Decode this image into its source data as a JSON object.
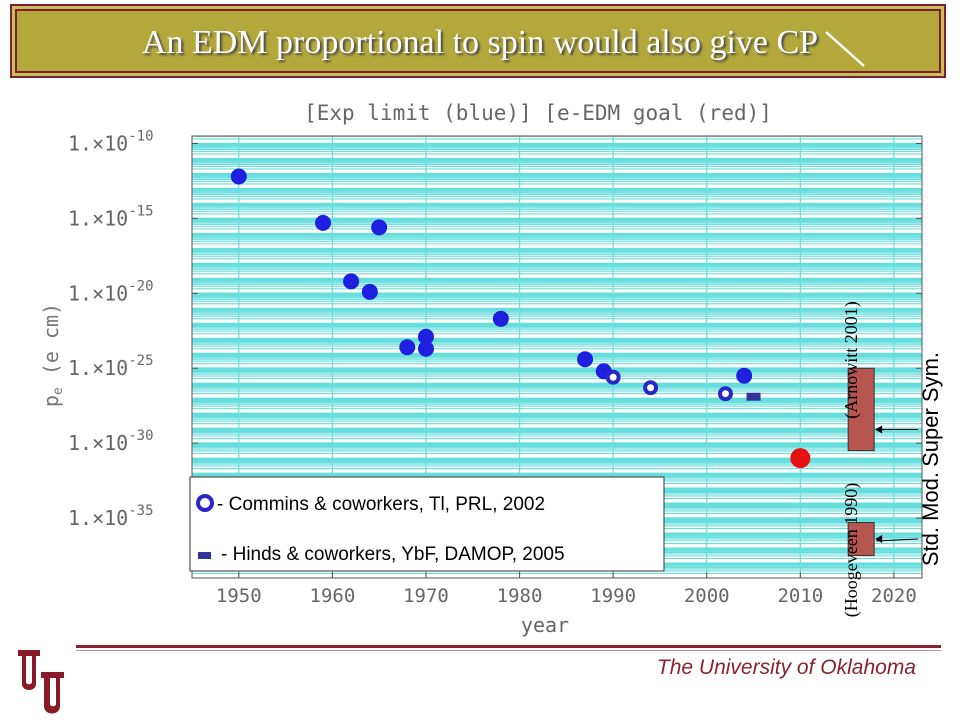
{
  "slide": {
    "title": "An EDM proportional to spin would also give CP",
    "footer": "The University of Oklahoma"
  },
  "chart_data": {
    "type": "scatter",
    "title": "[Exp limit (blue)] [e-EDM goal (red)]",
    "xlabel": "year",
    "ylabel_main": "p",
    "ylabel_sub": "e",
    "ylabel_unit": "(e cm)",
    "xlim": [
      1945,
      2023
    ],
    "ylim_log10": [
      -39,
      -9.5
    ],
    "log_scale_y": true,
    "grid": true,
    "x_ticks": [
      1950,
      1960,
      1970,
      1980,
      1990,
      2000,
      2010,
      2020
    ],
    "y_ticks": [
      {
        "exp": -10,
        "label_base": "1.×10",
        "label_exp": "-10"
      },
      {
        "exp": -15,
        "label_base": "1.×10",
        "label_exp": "-15"
      },
      {
        "exp": -20,
        "label_base": "1.×10",
        "label_exp": "-20"
      },
      {
        "exp": -25,
        "label_base": "1.×10",
        "label_exp": "-25"
      },
      {
        "exp": -30,
        "label_base": "1.×10",
        "label_exp": "-30"
      },
      {
        "exp": -35,
        "label_base": "1.×10",
        "label_exp": "-35"
      }
    ],
    "exp_limits_blue": [
      {
        "x": 1950,
        "log10_y": -12.2
      },
      {
        "x": 1959,
        "log10_y": -15.3
      },
      {
        "x": 1965,
        "log10_y": -15.6
      },
      {
        "x": 1962,
        "log10_y": -19.2
      },
      {
        "x": 1964,
        "log10_y": -19.9
      },
      {
        "x": 1968,
        "log10_y": -23.6
      },
      {
        "x": 1970,
        "log10_y": -22.9
      },
      {
        "x": 1970,
        "log10_y": -23.7
      },
      {
        "x": 1978,
        "log10_y": -21.7
      },
      {
        "x": 1987,
        "log10_y": -24.4
      },
      {
        "x": 1989,
        "log10_y": -25.2
      },
      {
        "x": 2004,
        "log10_y": -25.5
      }
    ],
    "commins_tl_rings": [
      {
        "x": 1990,
        "log10_y": -25.6
      },
      {
        "x": 1994,
        "log10_y": -26.3
      },
      {
        "x": 2002,
        "log10_y": -26.7
      }
    ],
    "hinds_ybf": [
      {
        "x": 2005,
        "log10_y": -26.9
      }
    ],
    "edm_goal_red": [
      {
        "x": 2010,
        "log10_y": -31.0
      }
    ],
    "theory_bars": [
      {
        "name": "Super Sym.",
        "ref": "(Arnowitt 2001)",
        "x_center": 2016.5,
        "log10_lo": -30.5,
        "log10_hi": -25.0
      },
      {
        "name": "Std. Mod.",
        "ref": "(Hoogeveen 1990)",
        "x_center": 2016.5,
        "log10_lo": -37.5,
        "log10_hi": -35.3
      }
    ],
    "legend": {
      "placement": "bottom-left",
      "entries": [
        {
          "label": "- Commins & coworkers, Tl, PRL, 2002"
        },
        {
          "label": "- Hinds & coworkers, YbF, DAMOP, 2005"
        }
      ]
    },
    "colors": {
      "exp_limit": "#1f1fe0",
      "goal": "#e81010",
      "grid": "#66dede",
      "theory_bar": "#b75551",
      "ring_outer": "#2828c8",
      "hinds": "#333399"
    }
  }
}
